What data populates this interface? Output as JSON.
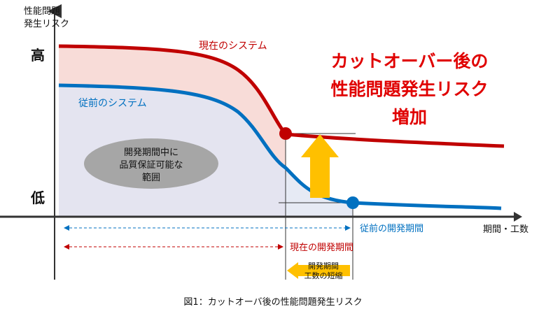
{
  "yaxis": {
    "title_line1": "性能問題",
    "title_line2": "発生リスク",
    "high": "高",
    "low": "低"
  },
  "xaxis": {
    "title": "期間・工数"
  },
  "curves": {
    "current": {
      "label": "現在のシステム",
      "color": "#c00000"
    },
    "previous": {
      "label": "従前のシステム",
      "color": "#0070c0"
    }
  },
  "callout": {
    "line1": "カットオーバー後の",
    "line2": "性能問題発生リスク",
    "line3": "増加",
    "color": "#e00000"
  },
  "quality_ellipse": {
    "line1": "開発期間中に",
    "line2": "品質保証可能な",
    "line3": "範囲"
  },
  "periods": {
    "previous": "従前の開発期間",
    "current": "現在の開発期間",
    "shortening_line1": "開発期間",
    "shortening_line2": "工数の短縮"
  },
  "caption": "図1：カットオーバ後の性能問題発生リスク",
  "colors": {
    "arrow": "#ffc000",
    "ellipse": "#a6a6a6",
    "red_fill": "#f8dcd8",
    "blue_fill": "#e4e4f0"
  }
}
